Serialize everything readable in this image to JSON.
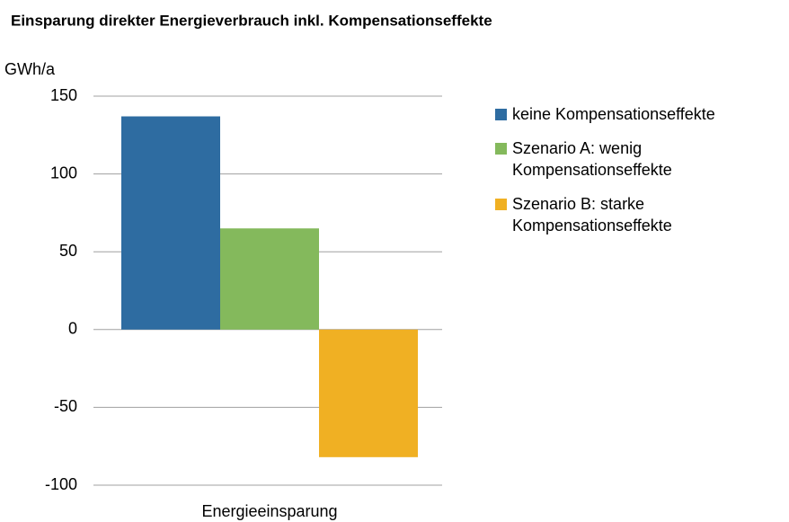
{
  "chart_data": {
    "type": "bar",
    "title": "Einsparung direkter Energieverbrauch inkl. Kompensationseffekte",
    "y_label": "GWh/a",
    "categories": [
      "Energieeinsparung"
    ],
    "series": [
      {
        "name": "keine Kompensationseffekte",
        "color": "#2e6ca1",
        "values": [
          137
        ]
      },
      {
        "name": "Szenario A: wenig Kompensationseffekte",
        "color": "#84b95c",
        "values": [
          65
        ]
      },
      {
        "name": "Szenario B: starke Kompensationseffekte",
        "color": "#f0b023",
        "values": [
          -82
        ]
      }
    ],
    "ylim": [
      -100,
      150
    ],
    "yticks": [
      -100,
      -50,
      0,
      50,
      100,
      150
    ],
    "grid": true,
    "legend": "right"
  }
}
